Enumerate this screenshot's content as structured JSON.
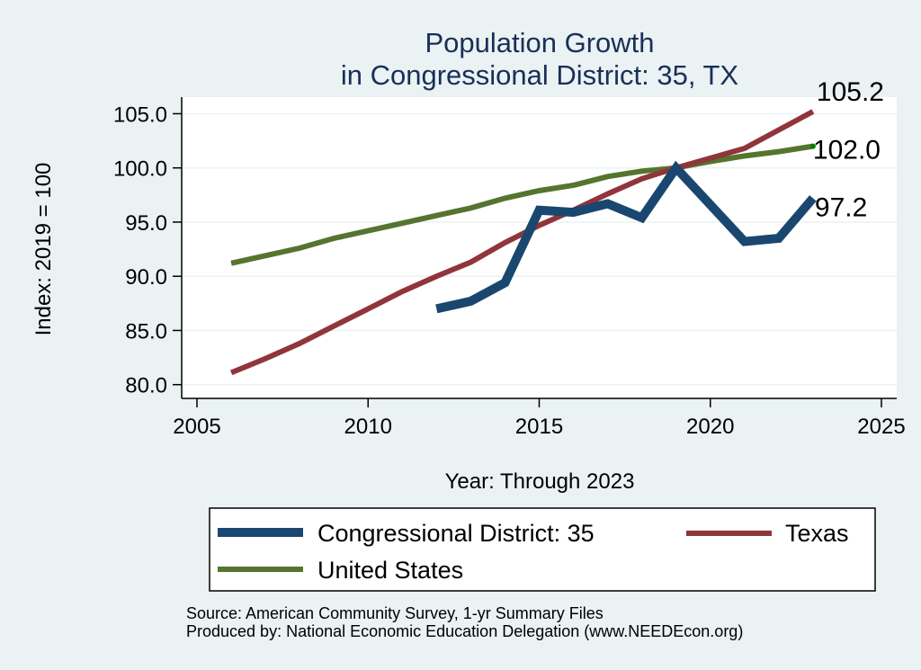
{
  "chart_data": {
    "type": "line",
    "title": [
      "Population Growth",
      "in Congressional District: 35, TX"
    ],
    "xlabel": "Year: Through 2023",
    "ylabel": "Index: 2019 = 100",
    "xlim": [
      2005,
      2025
    ],
    "ylim": [
      80,
      105
    ],
    "xticks": [
      2005,
      2010,
      2015,
      2020,
      2025
    ],
    "xtick_labels": [
      "2005",
      "2010",
      "2015",
      "2020",
      "2025"
    ],
    "yticks": [
      80,
      85,
      90,
      95,
      100,
      105
    ],
    "ytick_labels": [
      "80.0",
      "85.0",
      "90.0",
      "95.0",
      "100.0",
      "105.0"
    ],
    "grid": "horizontal",
    "legend_position": "bottom",
    "series": [
      {
        "name": "Congressional District: 35",
        "color": "#1a476f",
        "x": [
          2012,
          2013,
          2014,
          2015,
          2016,
          2017,
          2018,
          2019,
          2021,
          2022,
          2023
        ],
        "values": [
          87.0,
          87.7,
          89.4,
          96.1,
          95.9,
          96.7,
          95.4,
          100.0,
          93.2,
          93.5,
          97.2
        ],
        "end_label": "97.2"
      },
      {
        "name": "Texas",
        "color": "#90353b",
        "x": [
          2006,
          2007,
          2008,
          2009,
          2010,
          2011,
          2012,
          2013,
          2014,
          2015,
          2016,
          2017,
          2018,
          2019,
          2020,
          2021,
          2022,
          2023
        ],
        "values": [
          81.1,
          82.4,
          83.8,
          85.4,
          87.0,
          88.6,
          90.0,
          91.3,
          93.1,
          94.7,
          96.1,
          97.6,
          99.0,
          100.0,
          100.9,
          101.8,
          103.5,
          105.2
        ],
        "end_label": "105.2"
      },
      {
        "name": "United States",
        "color": "#55752f",
        "x": [
          2006,
          2007,
          2008,
          2009,
          2010,
          2011,
          2012,
          2013,
          2014,
          2015,
          2016,
          2017,
          2018,
          2019,
          2020,
          2021,
          2022,
          2023
        ],
        "values": [
          91.2,
          91.9,
          92.6,
          93.5,
          94.2,
          94.9,
          95.6,
          96.3,
          97.2,
          97.9,
          98.4,
          99.2,
          99.7,
          100.0,
          100.6,
          101.1,
          101.5,
          102.0
        ],
        "end_label": "102.0"
      }
    ],
    "notes": [
      "Source: American Community Survey, 1-yr Summary Files",
      "Produced by: National Economic Education Delegation (www.NEEDEcon.org)"
    ]
  }
}
